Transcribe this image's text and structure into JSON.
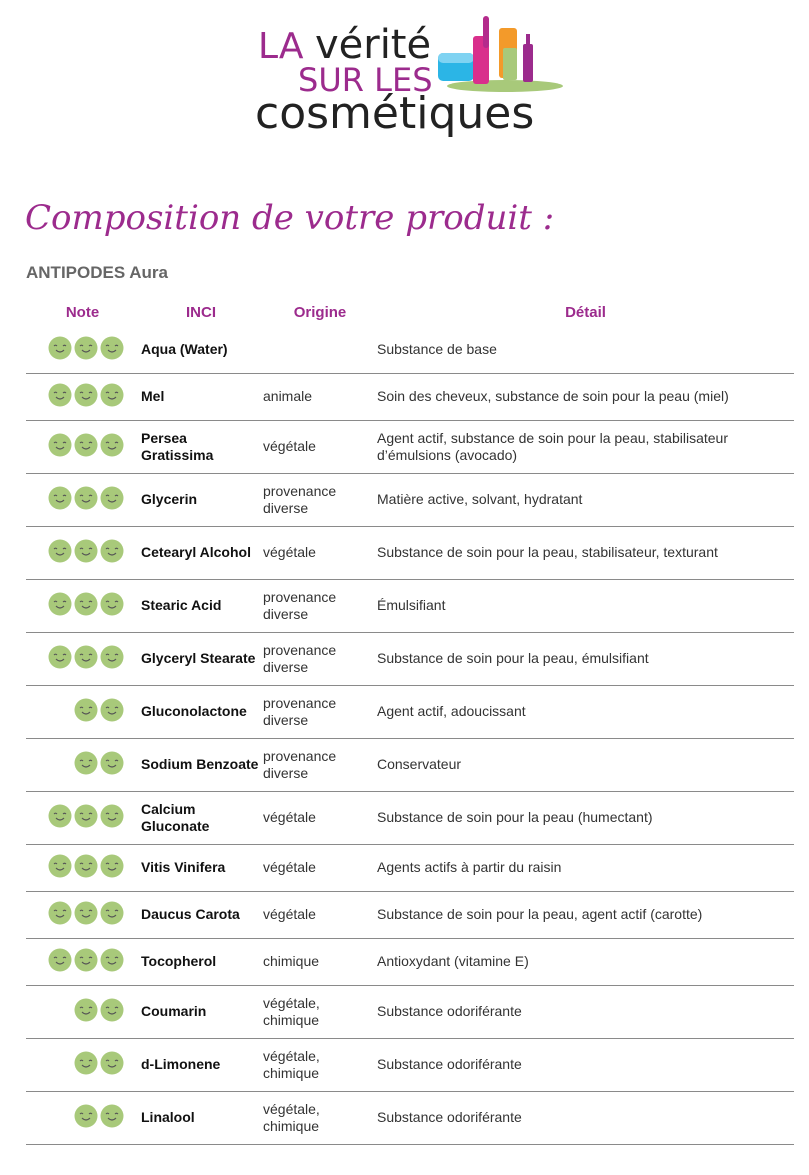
{
  "logo": {
    "line1_small": "LA",
    "line1_big": "vérité",
    "line2": "SUR LES",
    "line3": "cosmétiques"
  },
  "heading": "Composition de votre produit :",
  "product": "ANTIPODES Aura",
  "table": {
    "headers": {
      "note": "Note",
      "inci": "INCI",
      "origin": "Origine",
      "detail": "Détail"
    },
    "rows": [
      {
        "rating": 3,
        "inci": "Aqua (Water)",
        "origin": "",
        "detail": "Substance de base"
      },
      {
        "rating": 3,
        "inci": "Mel",
        "origin": "animale",
        "detail": "Soin des cheveux, substance de soin pour la peau (miel)"
      },
      {
        "rating": 3,
        "inci": "Persea Gratissima",
        "origin": "végétale",
        "detail": "Agent actif, substance de soin pour la peau, stabilisateur d’émulsions (avocado)"
      },
      {
        "rating": 3,
        "inci": "Glycerin",
        "origin": "provenance diverse",
        "detail": "Matière active, solvant, hydratant"
      },
      {
        "rating": 3,
        "inci": "Cetearyl Alcohol",
        "origin": "végétale",
        "detail": "Substance de soin pour la peau, stabilisateur, texturant"
      },
      {
        "rating": 3,
        "inci": "Stearic Acid",
        "origin": "provenance diverse",
        "detail": "Émulsifiant"
      },
      {
        "rating": 3,
        "inci": "Glyceryl Stearate",
        "origin": "provenance diverse",
        "detail": "Substance de soin pour la peau, émulsifiant"
      },
      {
        "rating": 2,
        "inci": "Gluconolactone",
        "origin": "provenance diverse",
        "detail": "Agent actif, adoucissant"
      },
      {
        "rating": 2,
        "inci": "Sodium Benzoate",
        "origin": "provenance diverse",
        "detail": "Conservateur"
      },
      {
        "rating": 3,
        "inci": "Calcium Gluconate",
        "origin": "végétale",
        "detail": "Substance de soin pour la peau (humectant)"
      },
      {
        "rating": 3,
        "inci": "Vitis Vinifera",
        "origin": "végétale",
        "detail": "Agents actifs à partir du raisin"
      },
      {
        "rating": 3,
        "inci": "Daucus Carota",
        "origin": "végétale",
        "detail": "Substance de soin pour la peau, agent actif (carotte)"
      },
      {
        "rating": 3,
        "inci": "Tocopherol",
        "origin": "chimique",
        "detail": "Antioxydant (vitamine E)"
      },
      {
        "rating": 2,
        "inci": "Coumarin",
        "origin": "végétale, chimique",
        "detail": "Substance odoriférante"
      },
      {
        "rating": 2,
        "inci": "d-Limonene",
        "origin": "végétale, chimique",
        "detail": "Substance odoriférante"
      },
      {
        "rating": 2,
        "inci": "Linalool",
        "origin": "végétale, chimique",
        "detail": "Substance odoriférante"
      }
    ]
  },
  "colors": {
    "accent": "#9c2b8d",
    "smiley": "#a8c97a",
    "border": "#8a8a8a"
  }
}
